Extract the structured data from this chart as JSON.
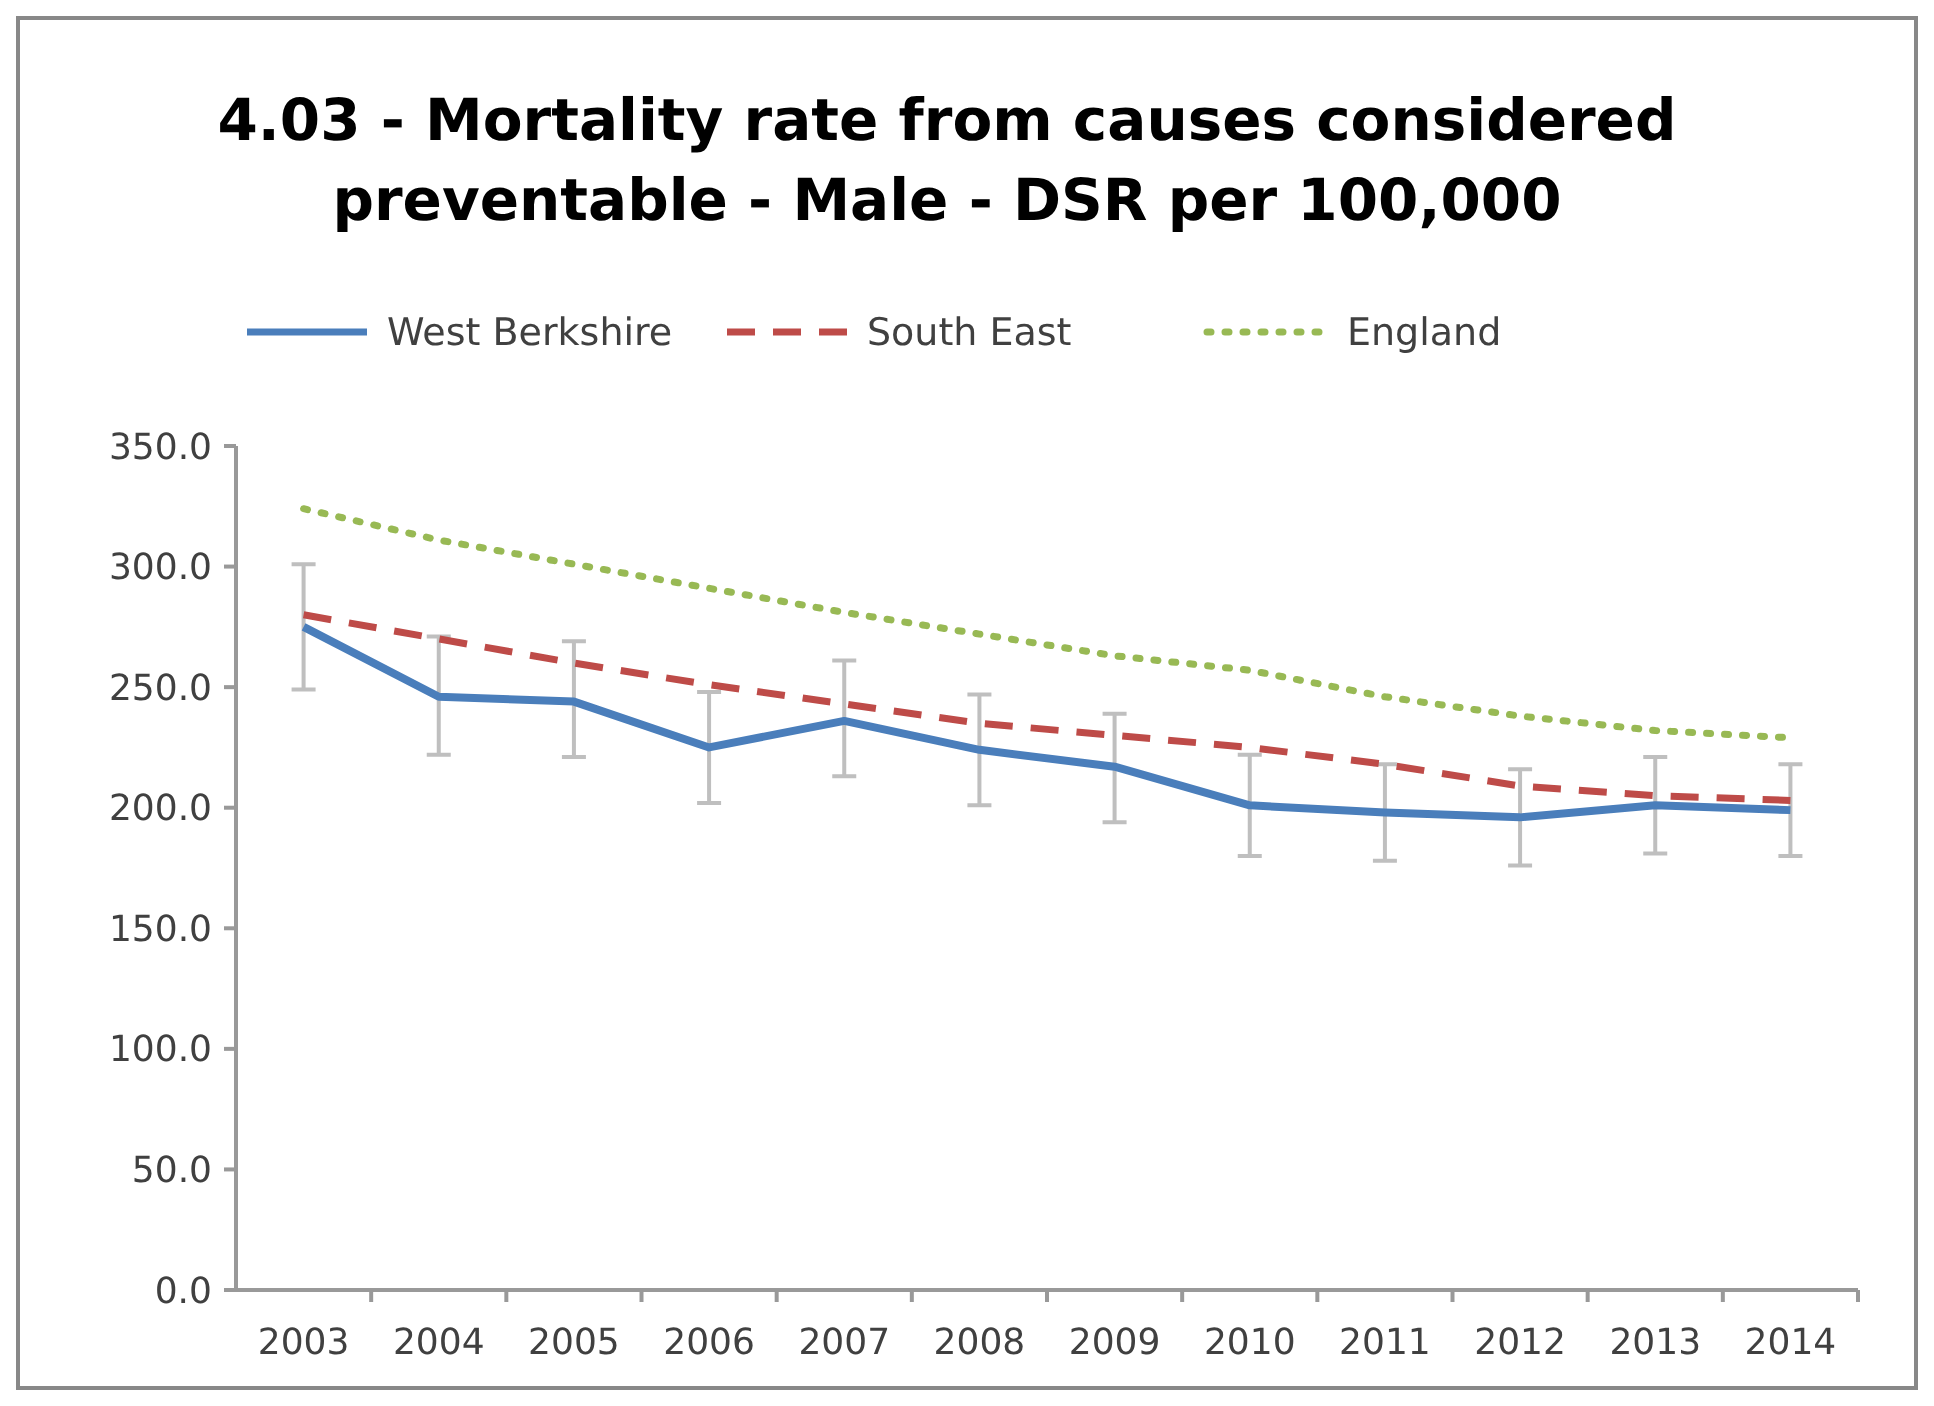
{
  "chart_data": {
    "type": "line",
    "title": "4.03 - Mortality rate from causes considered preventable - Male - DSR per 100,000",
    "categories": [
      "2003",
      "2004",
      "2005",
      "2006",
      "2007",
      "2008",
      "2009",
      "2010",
      "2011",
      "2012",
      "2013",
      "2014"
    ],
    "series": [
      {
        "name": "West Berkshire",
        "color": "#4a7ebb",
        "line_style": "solid",
        "values": [
          275,
          246,
          244,
          225,
          236,
          224,
          217,
          201,
          198,
          196,
          201,
          199
        ],
        "errors": [
          [
            249,
            301
          ],
          [
            222,
            271
          ],
          [
            221,
            269
          ],
          [
            202,
            248
          ],
          [
            213,
            261
          ],
          [
            201,
            247
          ],
          [
            194,
            239
          ],
          [
            180,
            222
          ],
          [
            178,
            218
          ],
          [
            176,
            216
          ],
          [
            181,
            221
          ],
          [
            180,
            218
          ]
        ]
      },
      {
        "name": "South East",
        "color": "#be4b48",
        "line_style": "dashed",
        "values": [
          280,
          270,
          260,
          251,
          243,
          235,
          230,
          225,
          218,
          209,
          205,
          203
        ]
      },
      {
        "name": "England",
        "color": "#98b954",
        "line_style": "dotted",
        "values": [
          324,
          311,
          301,
          291,
          281,
          272,
          263,
          257,
          246,
          238,
          232,
          229
        ]
      }
    ],
    "ylim": [
      0,
      350
    ],
    "yticks": [
      {
        "value": 0,
        "label": "0.0"
      },
      {
        "value": 50,
        "label": "50.0"
      },
      {
        "value": 100,
        "label": "100.0"
      },
      {
        "value": 150,
        "label": "150.0"
      },
      {
        "value": 200,
        "label": "200.0"
      },
      {
        "value": 250,
        "label": "250.0"
      },
      {
        "value": 300,
        "label": "300.0"
      },
      {
        "value": 350,
        "label": "350.0"
      }
    ],
    "grid": false,
    "legend": "top",
    "marker": "none"
  }
}
